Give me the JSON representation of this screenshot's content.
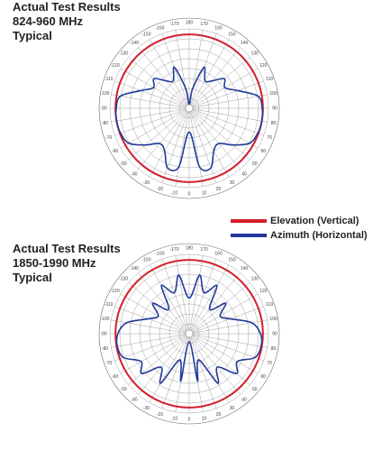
{
  "chart_data": [
    {
      "type": "polar",
      "title_lines": [
        "Actual Test Results",
        "824-960 MHz",
        "Typical"
      ],
      "angle_tick_labels": [
        "0",
        "10",
        "20",
        "30",
        "40",
        "50",
        "60",
        "70",
        "80",
        "90",
        "100",
        "110",
        "120",
        "130",
        "140",
        "150",
        "160",
        "170",
        "180",
        "-170",
        "-160",
        "-150",
        "-140",
        "-130",
        "-120",
        "-110",
        "-100",
        "-90",
        "-80",
        "-70",
        "-60",
        "-50",
        "-40",
        "-30",
        "-20",
        "-10"
      ],
      "radial_rings": 8,
      "series": [
        {
          "legend_ref": 0,
          "shape": "circle",
          "level": 0.93
        },
        {
          "legend_ref": 1,
          "shape": "pattern",
          "angles_deg": [
            0,
            10,
            20,
            30,
            40,
            50,
            60,
            70,
            80,
            90,
            100,
            110,
            120,
            130,
            140,
            150,
            160,
            170,
            180,
            190,
            200,
            210,
            220,
            230,
            240,
            250,
            260,
            270,
            280,
            290,
            300,
            310,
            320,
            330,
            340,
            350
          ],
          "levels": [
            0.3,
            0.75,
            0.8,
            0.62,
            0.58,
            0.72,
            0.88,
            0.92,
            0.93,
            0.92,
            0.88,
            0.65,
            0.52,
            0.58,
            0.45,
            0.4,
            0.55,
            0.25,
            0.05,
            0.25,
            0.55,
            0.4,
            0.45,
            0.58,
            0.52,
            0.65,
            0.88,
            0.92,
            0.93,
            0.92,
            0.88,
            0.72,
            0.58,
            0.62,
            0.8,
            0.75
          ]
        }
      ]
    },
    {
      "type": "polar",
      "title_lines": [
        "Actual Test Results",
        "1850-1990 MHz",
        "Typical"
      ],
      "angle_tick_labels": [
        "0",
        "10",
        "20",
        "30",
        "40",
        "50",
        "60",
        "70",
        "80",
        "90",
        "100",
        "110",
        "120",
        "130",
        "140",
        "150",
        "160",
        "170",
        "180",
        "-170",
        "-160",
        "-150",
        "-140",
        "-130",
        "-120",
        "-110",
        "-100",
        "-90",
        "-80",
        "-70",
        "-60",
        "-50",
        "-40",
        "-30",
        "-20",
        "-10"
      ],
      "radial_rings": 8,
      "series": [
        {
          "legend_ref": 0,
          "shape": "circle",
          "level": 0.93
        },
        {
          "legend_ref": 1,
          "shape": "pattern",
          "angles_deg": [
            0,
            10,
            20,
            30,
            40,
            50,
            60,
            70,
            80,
            90,
            100,
            110,
            120,
            130,
            140,
            150,
            160,
            170,
            180,
            190,
            200,
            210,
            220,
            230,
            240,
            250,
            260,
            270,
            280,
            290,
            300,
            310,
            320,
            330,
            340,
            350
          ],
          "levels": [
            0.1,
            0.6,
            0.35,
            0.72,
            0.55,
            0.78,
            0.7,
            0.88,
            0.92,
            0.9,
            0.8,
            0.55,
            0.45,
            0.6,
            0.4,
            0.7,
            0.55,
            0.75,
            0.45,
            0.75,
            0.55,
            0.7,
            0.4,
            0.6,
            0.45,
            0.55,
            0.8,
            0.9,
            0.92,
            0.88,
            0.7,
            0.78,
            0.55,
            0.72,
            0.35,
            0.6
          ]
        }
      ]
    }
  ],
  "legend": [
    {
      "label": "Elevation (Vertical)",
      "color": "#d21f2b"
    },
    {
      "label": "Azimuth (Horizontal)",
      "color": "#22399a"
    }
  ]
}
